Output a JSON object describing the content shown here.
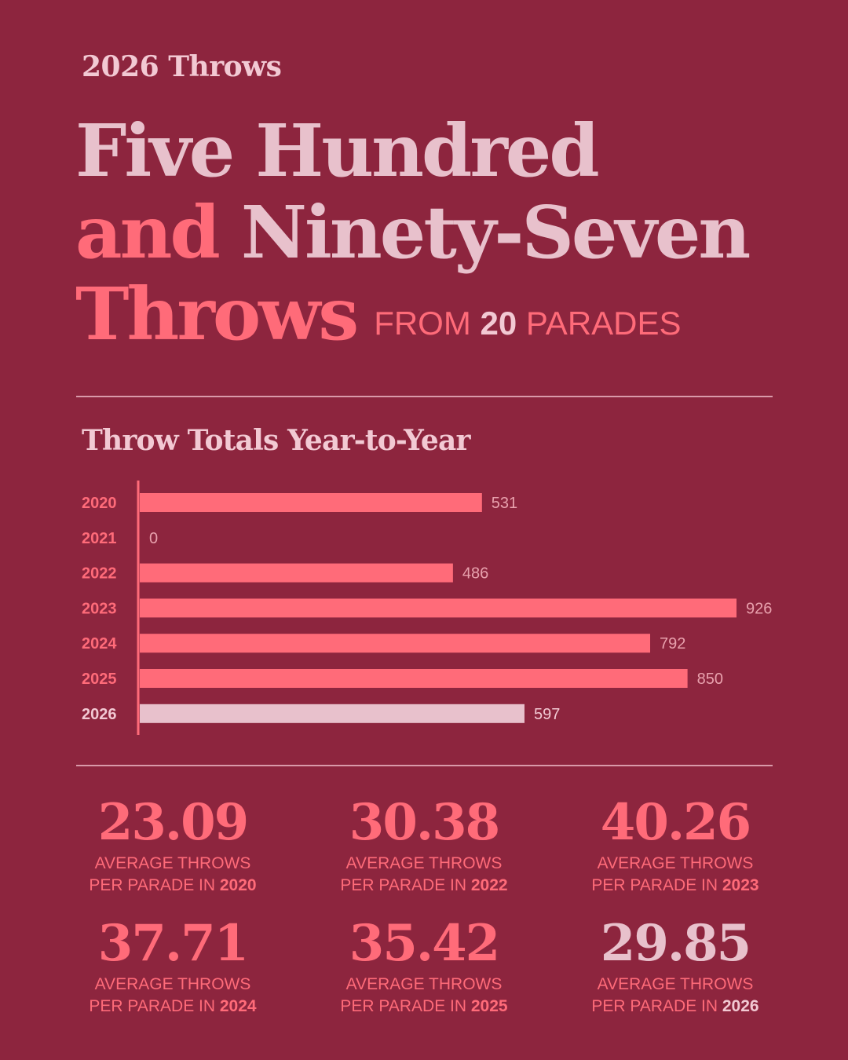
{
  "kicker": "2026 Throws",
  "headline": {
    "line1": "Five Hundred",
    "line2_accent": "and",
    "line2_rest": "Ninety-Seven",
    "line3": "Throws",
    "from_prefix": "FROM",
    "from_number": "20",
    "from_suffix": "PARADES"
  },
  "colors": {
    "background": "#8d253e",
    "coral": "#ff6b79",
    "pale": "#e8c1cc",
    "rule": "#d99aa9"
  },
  "chart_data": {
    "type": "bar",
    "orientation": "horizontal",
    "title": "Throw Totals Year-to-Year",
    "categories": [
      "2020",
      "2021",
      "2022",
      "2023",
      "2024",
      "2025",
      "2026"
    ],
    "values": [
      531,
      0,
      486,
      926,
      792,
      850,
      597
    ],
    "highlight_category": "2026",
    "xlim": [
      0,
      926
    ],
    "grid": false,
    "legend": "none"
  },
  "stats": [
    {
      "value": "23.09",
      "caption1": "AVERAGE THROWS",
      "caption2": "PER PARADE IN",
      "year": "2020",
      "highlight": false
    },
    {
      "value": "30.38",
      "caption1": "AVERAGE THROWS",
      "caption2": "PER PARADE IN",
      "year": "2022",
      "highlight": false
    },
    {
      "value": "40.26",
      "caption1": "AVERAGE THROWS",
      "caption2": "PER PARADE IN",
      "year": "2023",
      "highlight": false
    },
    {
      "value": "37.71",
      "caption1": "AVERAGE THROWS",
      "caption2": "PER PARADE IN",
      "year": "2024",
      "highlight": false
    },
    {
      "value": "35.42",
      "caption1": "AVERAGE THROWS",
      "caption2": "PER PARADE IN",
      "year": "2025",
      "highlight": false
    },
    {
      "value": "29.85",
      "caption1": "AVERAGE THROWS",
      "caption2": "PER PARADE IN",
      "year": "2026",
      "highlight": true
    }
  ]
}
